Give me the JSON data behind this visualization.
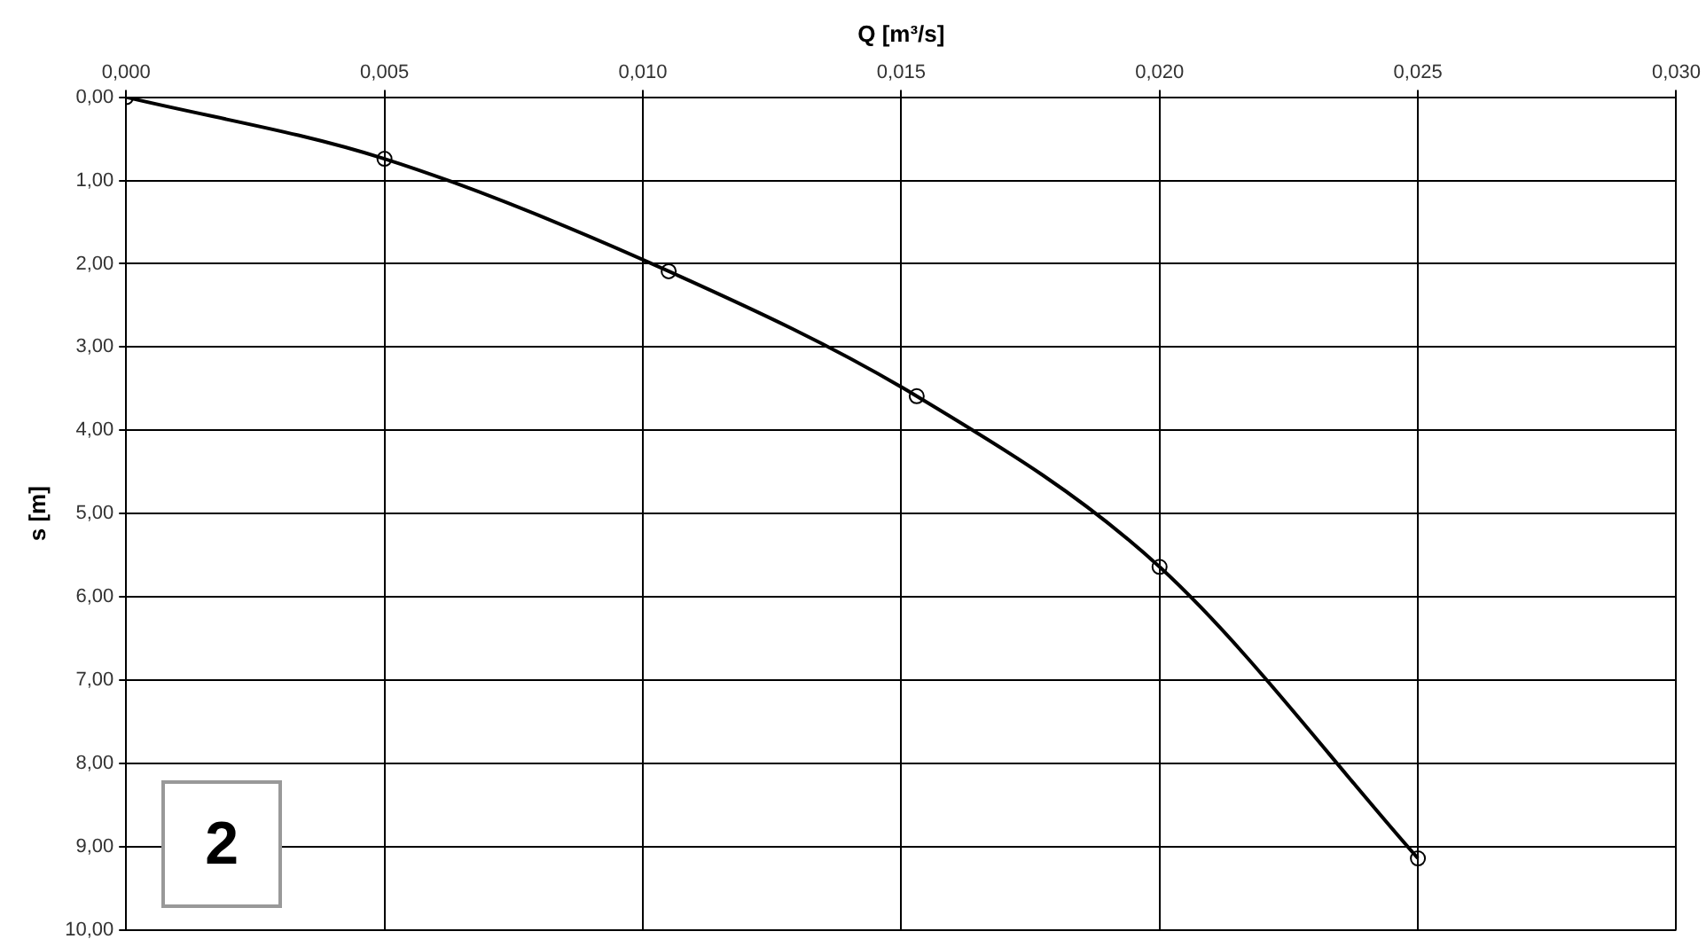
{
  "chart_data": {
    "type": "line",
    "xlabel": "Q [m³/s]",
    "ylabel": "s [m]",
    "x": [
      0,
      0.005,
      0.0105,
      0.0153,
      0.02,
      0.025
    ],
    "series": [
      {
        "color": "#000000",
        "values": [
          0,
          0.74,
          2.09,
          3.59,
          5.64,
          9.14
        ]
      }
    ],
    "xlim": [
      0,
      0.03
    ],
    "xticks": [
      {
        "value": 0,
        "label": "0,000"
      },
      {
        "value": 0.005,
        "label": "0,005"
      },
      {
        "value": 0.01,
        "label": "0,010"
      },
      {
        "value": 0.015,
        "label": "0,015"
      },
      {
        "value": 0.02,
        "label": "0,020"
      },
      {
        "value": 0.025,
        "label": "0,025"
      },
      {
        "value": 0.03,
        "label": "0,030"
      }
    ],
    "ylim": [
      10,
      0
    ],
    "yticks": [
      {
        "value": 0,
        "label": "0,00"
      },
      {
        "value": 1,
        "label": "1,00"
      },
      {
        "value": 2,
        "label": "2,00"
      },
      {
        "value": 3,
        "label": "3,00"
      },
      {
        "value": 4,
        "label": "4,00"
      },
      {
        "value": 5,
        "label": "5,00"
      },
      {
        "value": 6,
        "label": "6,00"
      },
      {
        "value": 7,
        "label": "7,00"
      },
      {
        "value": 8,
        "label": "8,00"
      },
      {
        "value": 9,
        "label": "9,00"
      },
      {
        "value": 10,
        "label": "10,00"
      }
    ],
    "grid": true,
    "legend": false,
    "marker": "circle",
    "line_style": "solid",
    "annotations": [
      "2"
    ]
  }
}
